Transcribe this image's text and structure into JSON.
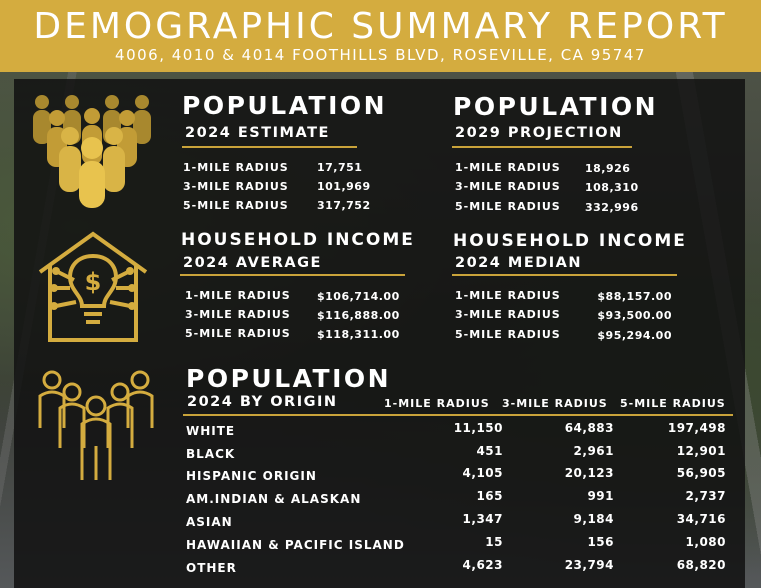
{
  "header": {
    "title": "DEMOGRAPHIC SUMMARY REPORT",
    "address": "4006, 4010 & 4014 FOOTHILLS BLVD, ROSEVILLE, CA 95747"
  },
  "pop2024": {
    "title": "POPULATION",
    "subtitle": "2024 ESTIMATE",
    "rows": [
      {
        "label": "1-MILE RADIUS",
        "value": "17,751"
      },
      {
        "label": "3-MILE RADIUS",
        "value": "101,969"
      },
      {
        "label": "5-MILE RADIUS",
        "value": "317,752"
      }
    ]
  },
  "pop2029": {
    "title": "POPULATION",
    "subtitle": "2029 PROJECTION",
    "rows": [
      {
        "label": "1-MILE RADIUS",
        "value": "18,926"
      },
      {
        "label": "3-MILE RADIUS",
        "value": "108,310"
      },
      {
        "label": "5-MILE RADIUS",
        "value": "332,996"
      }
    ]
  },
  "hh_avg": {
    "title": "HOUSEHOLD INCOME",
    "subtitle": "2024 AVERAGE",
    "rows": [
      {
        "label": "1-MILE RADIUS",
        "value": "$106,714.00"
      },
      {
        "label": "3-MILE RADIUS",
        "value": "$116,888.00"
      },
      {
        "label": "5-MILE RADIUS",
        "value": "$118,311.00"
      }
    ]
  },
  "hh_med": {
    "title": "HOUSEHOLD INCOME",
    "subtitle": "2024 MEDIAN",
    "rows": [
      {
        "label": "1-MILE RADIUS",
        "value": "$88,157.00"
      },
      {
        "label": "3-MILE RADIUS",
        "value": "$93,500.00"
      },
      {
        "label": "5-MILE RADIUS",
        "value": "$95,294.00"
      }
    ]
  },
  "origin": {
    "title": "POPULATION",
    "subtitle": "2024 BY ORIGIN",
    "columns": [
      "1-MILE RADIUS",
      "3-MILE RADIUS",
      "5-MILE RADIUS"
    ],
    "rows": [
      {
        "label": "WHITE",
        "values": [
          "11,150",
          "64,883",
          "197,498"
        ]
      },
      {
        "label": "BLACK",
        "values": [
          "451",
          "2,961",
          "12,901"
        ]
      },
      {
        "label": "HISPANIC ORIGIN",
        "values": [
          "4,105",
          "20,123",
          "56,905"
        ]
      },
      {
        "label": "AM.INDIAN & ALASKAN",
        "values": [
          "165",
          "991",
          "2,737"
        ]
      },
      {
        "label": "ASIAN",
        "values": [
          "1,347",
          "9,184",
          "34,716"
        ]
      },
      {
        "label": "HAWAIIAN & PACIFIC ISLAND",
        "values": [
          "15",
          "156",
          "1,080"
        ]
      },
      {
        "label": "OTHER",
        "values": [
          "4,623",
          "23,794",
          "68,820"
        ]
      }
    ]
  },
  "icons": {
    "population": "crowd-icon",
    "income": "house-lightbulb-dollar-icon",
    "origin": "group-people-icon"
  },
  "colors": {
    "gold": "#d4ac3f",
    "panel": "#121212",
    "text": "#ffffff"
  }
}
